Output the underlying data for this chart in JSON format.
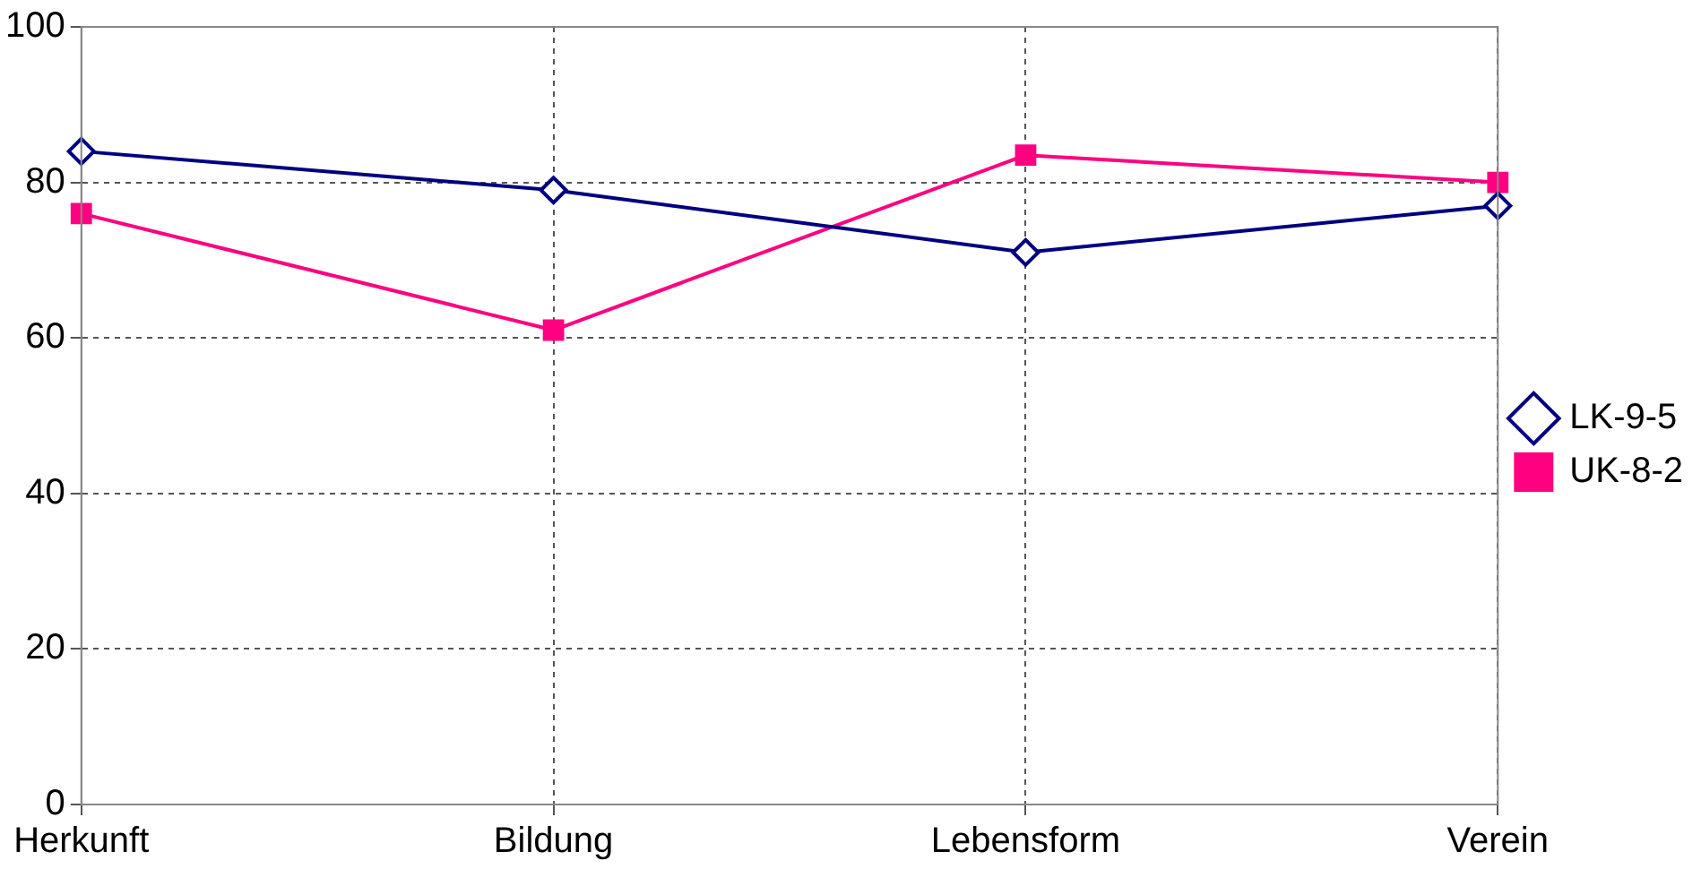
{
  "chart_data": {
    "type": "line",
    "categories": [
      "Herkunft",
      "Bildung",
      "Lebensform",
      "Verein"
    ],
    "series": [
      {
        "name": "LK-9-5",
        "color": "#000080",
        "marker": "diamond",
        "values": [
          84,
          79,
          71,
          77
        ]
      },
      {
        "name": "UK-8-2",
        "color": "#ff0080",
        "marker": "square",
        "values": [
          76,
          61,
          83.5,
          80
        ]
      }
    ],
    "ylim": [
      0,
      100
    ],
    "yticks": [
      0,
      20,
      40,
      60,
      80,
      100
    ],
    "grid": true,
    "legend": "right",
    "line_style": "solid"
  }
}
